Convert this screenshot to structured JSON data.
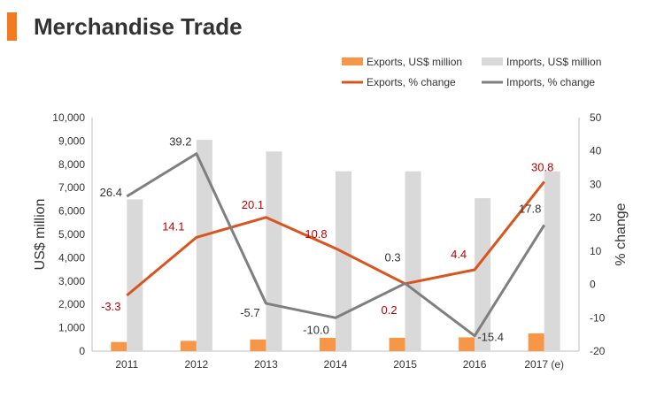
{
  "header": {
    "title": "Merchandise Trade",
    "accent_color": "#f47a20"
  },
  "chart_data": {
    "type": "bar",
    "title": "Merchandise Trade",
    "categories": [
      "2011",
      "2012",
      "2013",
      "2014",
      "2015",
      "2016",
      "2017 (e)"
    ],
    "ylabel": "US$ million",
    "y2label": "% change",
    "ylim": [
      0,
      10000
    ],
    "y2lim": [
      -20,
      50
    ],
    "yticks": [
      "0",
      "1,000",
      "2,000",
      "3,000",
      "4,000",
      "5,000",
      "6,000",
      "7,000",
      "8,000",
      "9,000",
      "10,000"
    ],
    "y2ticks": [
      "-20",
      "-10",
      "0",
      "10",
      "20",
      "30",
      "40",
      "50"
    ],
    "grid": false,
    "legend_position": "top-right",
    "series": [
      {
        "name": "Exports, US$ million",
        "type": "bar",
        "axis": "left",
        "color": "#f79646",
        "values": [
          390,
          440,
          500,
          570,
          570,
          590,
          760
        ]
      },
      {
        "name": "Imports, US$ million",
        "type": "bar",
        "axis": "left",
        "color": "#d9d9d9",
        "values": [
          6500,
          9050,
          8550,
          7700,
          7700,
          6550,
          7700
        ]
      },
      {
        "name": "Exports, % change",
        "type": "line",
        "axis": "right",
        "color": "#d9541e",
        "values": [
          -3.3,
          14.1,
          20.1,
          10.8,
          0.2,
          4.4,
          30.8
        ],
        "labels": [
          "-3.3",
          "14.1",
          "20.1",
          "10.8",
          "0.2",
          "4.4",
          "30.8"
        ],
        "label_color": "#c00000"
      },
      {
        "name": "Imports, % change",
        "type": "line",
        "axis": "right",
        "color": "#7f7f7f",
        "values": [
          26.4,
          39.2,
          -5.7,
          -10.0,
          0.3,
          -15.4,
          17.8
        ],
        "labels": [
          "26.4",
          "39.2",
          "-5.7",
          "-10.0",
          "0.3",
          "-15.4",
          "17.8"
        ],
        "label_color": "#333333"
      }
    ]
  }
}
